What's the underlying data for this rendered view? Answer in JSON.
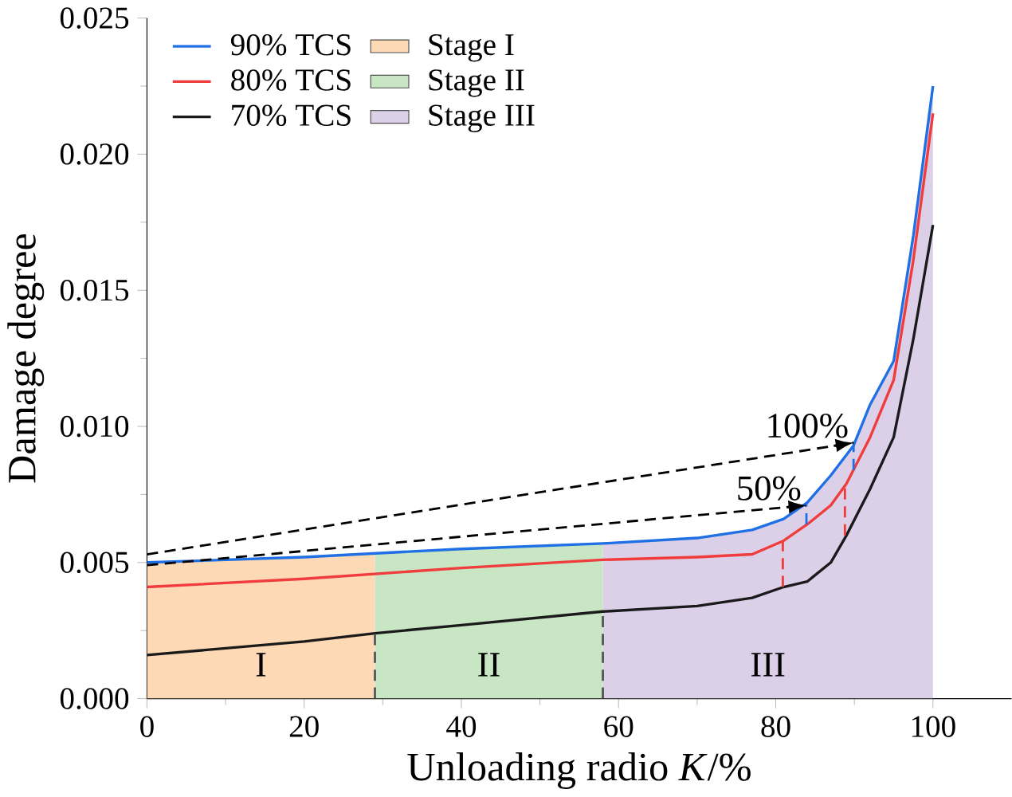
{
  "chart_data": {
    "type": "line",
    "xlabel": "Unloading radio *K*/%",
    "ylabel": "Damage degree",
    "xlim": [
      0,
      110
    ],
    "ylim": [
      0,
      0.025
    ],
    "xticks": [
      0,
      20,
      40,
      60,
      80,
      100
    ],
    "yticks": [
      {
        "value": 0,
        "label": "0.000"
      },
      {
        "value": 0.005,
        "label": "0.005"
      },
      {
        "value": 0.01,
        "label": "0.010"
      },
      {
        "value": 0.015,
        "label": "0.015"
      },
      {
        "value": 0.02,
        "label": "0.020"
      },
      {
        "value": 0.025,
        "label": "0.025"
      }
    ],
    "legend": "top left",
    "grid": false,
    "series": [
      {
        "name": "Stage I",
        "type": "area",
        "color": "#fdd9b5",
        "x": [
          0,
          20,
          29
        ],
        "values": [
          0.005,
          0.0052,
          0.0053
        ]
      },
      {
        "name": "Stage II",
        "type": "area",
        "color": "#c8e6c4",
        "x": [
          29,
          40,
          58
        ],
        "values": [
          0.0053,
          0.0055,
          0.0057
        ]
      },
      {
        "name": "Stage III",
        "type": "area",
        "color": "#dcd0e8",
        "x": [
          58,
          70,
          77,
          81,
          84,
          87,
          89.9,
          92,
          95,
          97.5,
          100
        ],
        "values": [
          0.0057,
          0.0059,
          0.0062,
          0.0066,
          0.0072,
          0.0082,
          0.0093,
          0.0108,
          0.0124,
          0.017,
          0.0225
        ]
      },
      {
        "name": "90% TCS",
        "color": "#1f6fe5",
        "x": [
          0,
          20,
          40,
          58,
          70,
          77,
          81,
          84,
          87,
          89.9,
          92,
          95,
          97.5,
          100
        ],
        "values": [
          0.005,
          0.0052,
          0.0055,
          0.0057,
          0.0059,
          0.0062,
          0.0066,
          0.0072,
          0.0082,
          0.0093,
          0.0108,
          0.0124,
          0.017,
          0.0225
        ]
      },
      {
        "name": "80% TCS",
        "color": "#f03c3c",
        "x": [
          0,
          20,
          40,
          58,
          70,
          77,
          81,
          84,
          87,
          89,
          92,
          95,
          97.5,
          100
        ],
        "values": [
          0.0041,
          0.0044,
          0.0048,
          0.0051,
          0.0052,
          0.0053,
          0.0058,
          0.0064,
          0.0071,
          0.0079,
          0.0096,
          0.0117,
          0.0161,
          0.0215
        ]
      },
      {
        "name": "70% TCS",
        "color": "#1a1a1a",
        "x": [
          0,
          20,
          29,
          40,
          58,
          70,
          77,
          81,
          84,
          87,
          89,
          92,
          95,
          97.5,
          100
        ],
        "values": [
          0.0016,
          0.0021,
          0.0024,
          0.0027,
          0.0032,
          0.0034,
          0.0037,
          0.0041,
          0.0043,
          0.005,
          0.006,
          0.0077,
          0.0096,
          0.0132,
          0.0174
        ]
      },
      {
        "color": "#000000",
        "line_style": "dashed",
        "x": [
          0,
          89.9
        ],
        "values": [
          0.0053,
          0.0094
        ]
      },
      {
        "color": "#000000",
        "line_style": "dashed",
        "x": [
          0,
          83.9
        ],
        "values": [
          0.0049,
          0.0071
        ]
      },
      {
        "color": "#555555",
        "line_style": "dashed",
        "x": [
          29,
          29
        ],
        "values": [
          0,
          0.0024
        ]
      },
      {
        "color": "#555555",
        "line_style": "dashed",
        "x": [
          58,
          58
        ],
        "values": [
          0,
          0.0032
        ]
      },
      {
        "color": "#f03c3c",
        "line_style": "dashed",
        "x": [
          80.9,
          80.9
        ],
        "values": [
          0.0041,
          0.0058
        ]
      },
      {
        "color": "#f03c3c",
        "line_style": "dashed",
        "x": [
          88.8,
          88.8
        ],
        "values": [
          0.006,
          0.0079
        ]
      },
      {
        "color": "#1f6fe5",
        "line_style": "dashed",
        "x": [
          83.9,
          83.9
        ],
        "values": [
          0.0064,
          0.0072
        ]
      },
      {
        "color": "#1f6fe5",
        "line_style": "dashed",
        "x": [
          89.9,
          89.9
        ],
        "values": [
          0.0084,
          0.0093
        ]
      }
    ],
    "annotations": [
      {
        "text": "100%",
        "x": 89.9,
        "y": 0.0094
      },
      {
        "text": "50%",
        "x": 83.9,
        "y": 0.0071
      },
      "I",
      "II",
      "III"
    ]
  }
}
